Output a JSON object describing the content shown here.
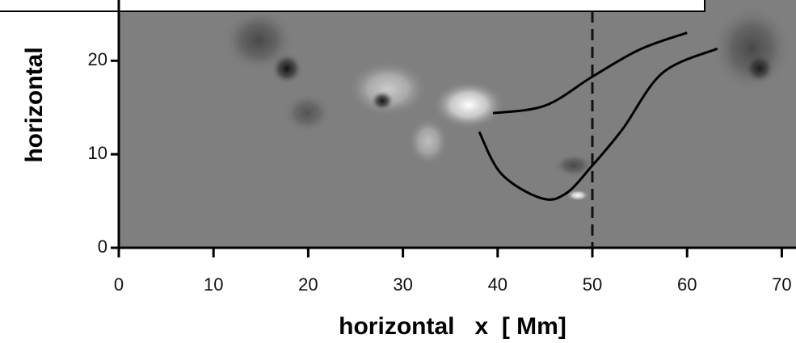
{
  "chart_data": {
    "type": "line",
    "xlabel": "horizontal   x  [ Mm]",
    "ylabel": "horizontal",
    "xlim": [
      0,
      71.5
    ],
    "ylim": [
      0,
      26.5
    ],
    "xticks": [
      0,
      10,
      20,
      30,
      40,
      50,
      60,
      70
    ],
    "yticks": [
      0,
      10,
      20
    ],
    "vline": 50,
    "series": [
      {
        "color": "#000000",
        "x": [
          39.5,
          45,
          50,
          55,
          60
        ],
        "values": [
          14.4,
          15.2,
          18.3,
          21.2,
          23
        ]
      },
      {
        "color": "#000000",
        "x": [
          38.05,
          40.4,
          44.6,
          47.2,
          50,
          53.2,
          57.4,
          63.2
        ],
        "values": [
          12.4,
          7.9,
          5.3,
          5.8,
          8.8,
          12.7,
          18.7,
          21.3
        ]
      }
    ]
  }
}
